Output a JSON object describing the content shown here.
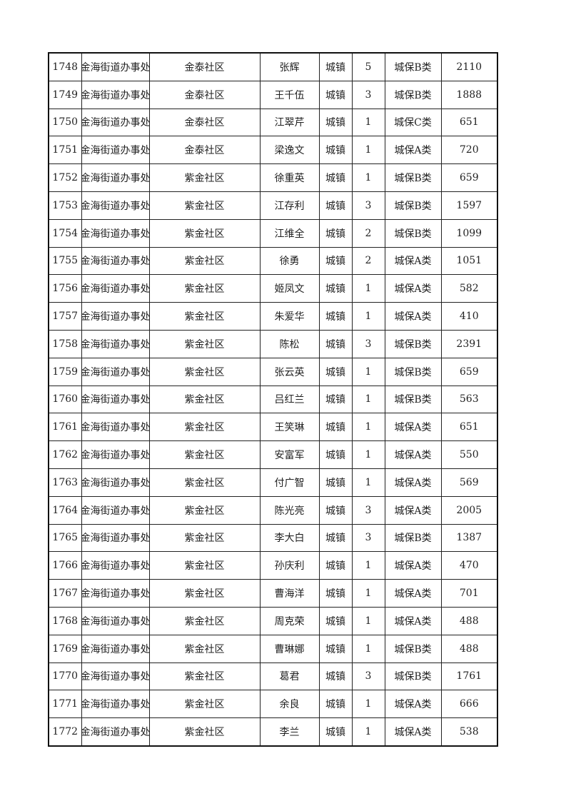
{
  "rows": [
    [
      "1748",
      "金海街道办事处",
      "金泰社区",
      "张辉",
      "城镇",
      "5",
      "城保B类",
      "2110"
    ],
    [
      "1749",
      "金海街道办事处",
      "金泰社区",
      "王千伍",
      "城镇",
      "3",
      "城保B类",
      "1888"
    ],
    [
      "1750",
      "金海街道办事处",
      "金泰社区",
      "江翠芹",
      "城镇",
      "1",
      "城保C类",
      "651"
    ],
    [
      "1751",
      "金海街道办事处",
      "金泰社区",
      "梁逸文",
      "城镇",
      "1",
      "城保A类",
      "720"
    ],
    [
      "1752",
      "金海街道办事处",
      "紫金社区",
      "徐重英",
      "城镇",
      "1",
      "城保B类",
      "659"
    ],
    [
      "1753",
      "金海街道办事处",
      "紫金社区",
      "江存利",
      "城镇",
      "3",
      "城保B类",
      "1597"
    ],
    [
      "1754",
      "金海街道办事处",
      "紫金社区",
      "江维全",
      "城镇",
      "2",
      "城保B类",
      "1099"
    ],
    [
      "1755",
      "金海街道办事处",
      "紫金社区",
      "徐勇",
      "城镇",
      "2",
      "城保A类",
      "1051"
    ],
    [
      "1756",
      "金海街道办事处",
      "紫金社区",
      "姬凤文",
      "城镇",
      "1",
      "城保A类",
      "582"
    ],
    [
      "1757",
      "金海街道办事处",
      "紫金社区",
      "朱爱华",
      "城镇",
      "1",
      "城保A类",
      "410"
    ],
    [
      "1758",
      "金海街道办事处",
      "紫金社区",
      "陈松",
      "城镇",
      "3",
      "城保B类",
      "2391"
    ],
    [
      "1759",
      "金海街道办事处",
      "紫金社区",
      "张云英",
      "城镇",
      "1",
      "城保B类",
      "659"
    ],
    [
      "1760",
      "金海街道办事处",
      "紫金社区",
      "吕红兰",
      "城镇",
      "1",
      "城保B类",
      "563"
    ],
    [
      "1761",
      "金海街道办事处",
      "紫金社区",
      "王笑琳",
      "城镇",
      "1",
      "城保A类",
      "651"
    ],
    [
      "1762",
      "金海街道办事处",
      "紫金社区",
      "安富军",
      "城镇",
      "1",
      "城保A类",
      "550"
    ],
    [
      "1763",
      "金海街道办事处",
      "紫金社区",
      "付广智",
      "城镇",
      "1",
      "城保A类",
      "569"
    ],
    [
      "1764",
      "金海街道办事处",
      "紫金社区",
      "陈光亮",
      "城镇",
      "3",
      "城保A类",
      "2005"
    ],
    [
      "1765",
      "金海街道办事处",
      "紫金社区",
      "李大白",
      "城镇",
      "3",
      "城保B类",
      "1387"
    ],
    [
      "1766",
      "金海街道办事处",
      "紫金社区",
      "孙庆利",
      "城镇",
      "1",
      "城保A类",
      "470"
    ],
    [
      "1767",
      "金海街道办事处",
      "紫金社区",
      "曹海洋",
      "城镇",
      "1",
      "城保A类",
      "701"
    ],
    [
      "1768",
      "金海街道办事处",
      "紫金社区",
      "周克荣",
      "城镇",
      "1",
      "城保A类",
      "488"
    ],
    [
      "1769",
      "金海街道办事处",
      "紫金社区",
      "曹琳娜",
      "城镇",
      "1",
      "城保B类",
      "488"
    ],
    [
      "1770",
      "金海街道办事处",
      "紫金社区",
      "葛君",
      "城镇",
      "3",
      "城保B类",
      "1761"
    ],
    [
      "1771",
      "金海街道办事处",
      "紫金社区",
      "余良",
      "城镇",
      "1",
      "城保A类",
      "666"
    ],
    [
      "1772",
      "金海街道办事处",
      "紫金社区",
      "李兰",
      "城镇",
      "1",
      "城保A类",
      "538"
    ]
  ]
}
